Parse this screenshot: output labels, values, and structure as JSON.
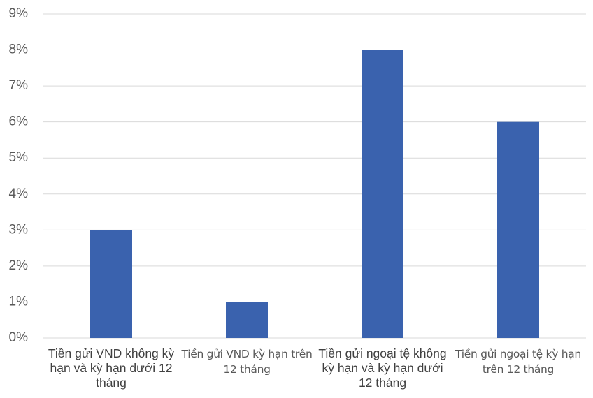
{
  "chart_data": {
    "type": "bar",
    "categories": [
      "Tiền gửi VND không kỳ hạn và kỳ hạn dưới 12 tháng",
      "Tiền gửi VND kỳ hạn trên 12 tháng",
      "Tiền gửi ngoại tệ không kỳ hạn và kỳ hạn dưới 12 tháng",
      "Tiền gửi ngoại tệ kỳ hạn trên 12 tháng"
    ],
    "values": [
      3,
      1,
      8,
      6
    ],
    "color": "#3a62ae",
    "ylim": [
      0,
      9
    ],
    "yticks": [
      {
        "value": 0,
        "label": "0%"
      },
      {
        "value": 1,
        "label": "1%"
      },
      {
        "value": 2,
        "label": "2%"
      },
      {
        "value": 3,
        "label": "3%"
      },
      {
        "value": 4,
        "label": "4%"
      },
      {
        "value": 5,
        "label": "5%"
      },
      {
        "value": 6,
        "label": "6%"
      },
      {
        "value": 7,
        "label": "7%"
      },
      {
        "value": 8,
        "label": "8%"
      },
      {
        "value": 9,
        "label": "9%"
      }
    ],
    "grid": true
  }
}
